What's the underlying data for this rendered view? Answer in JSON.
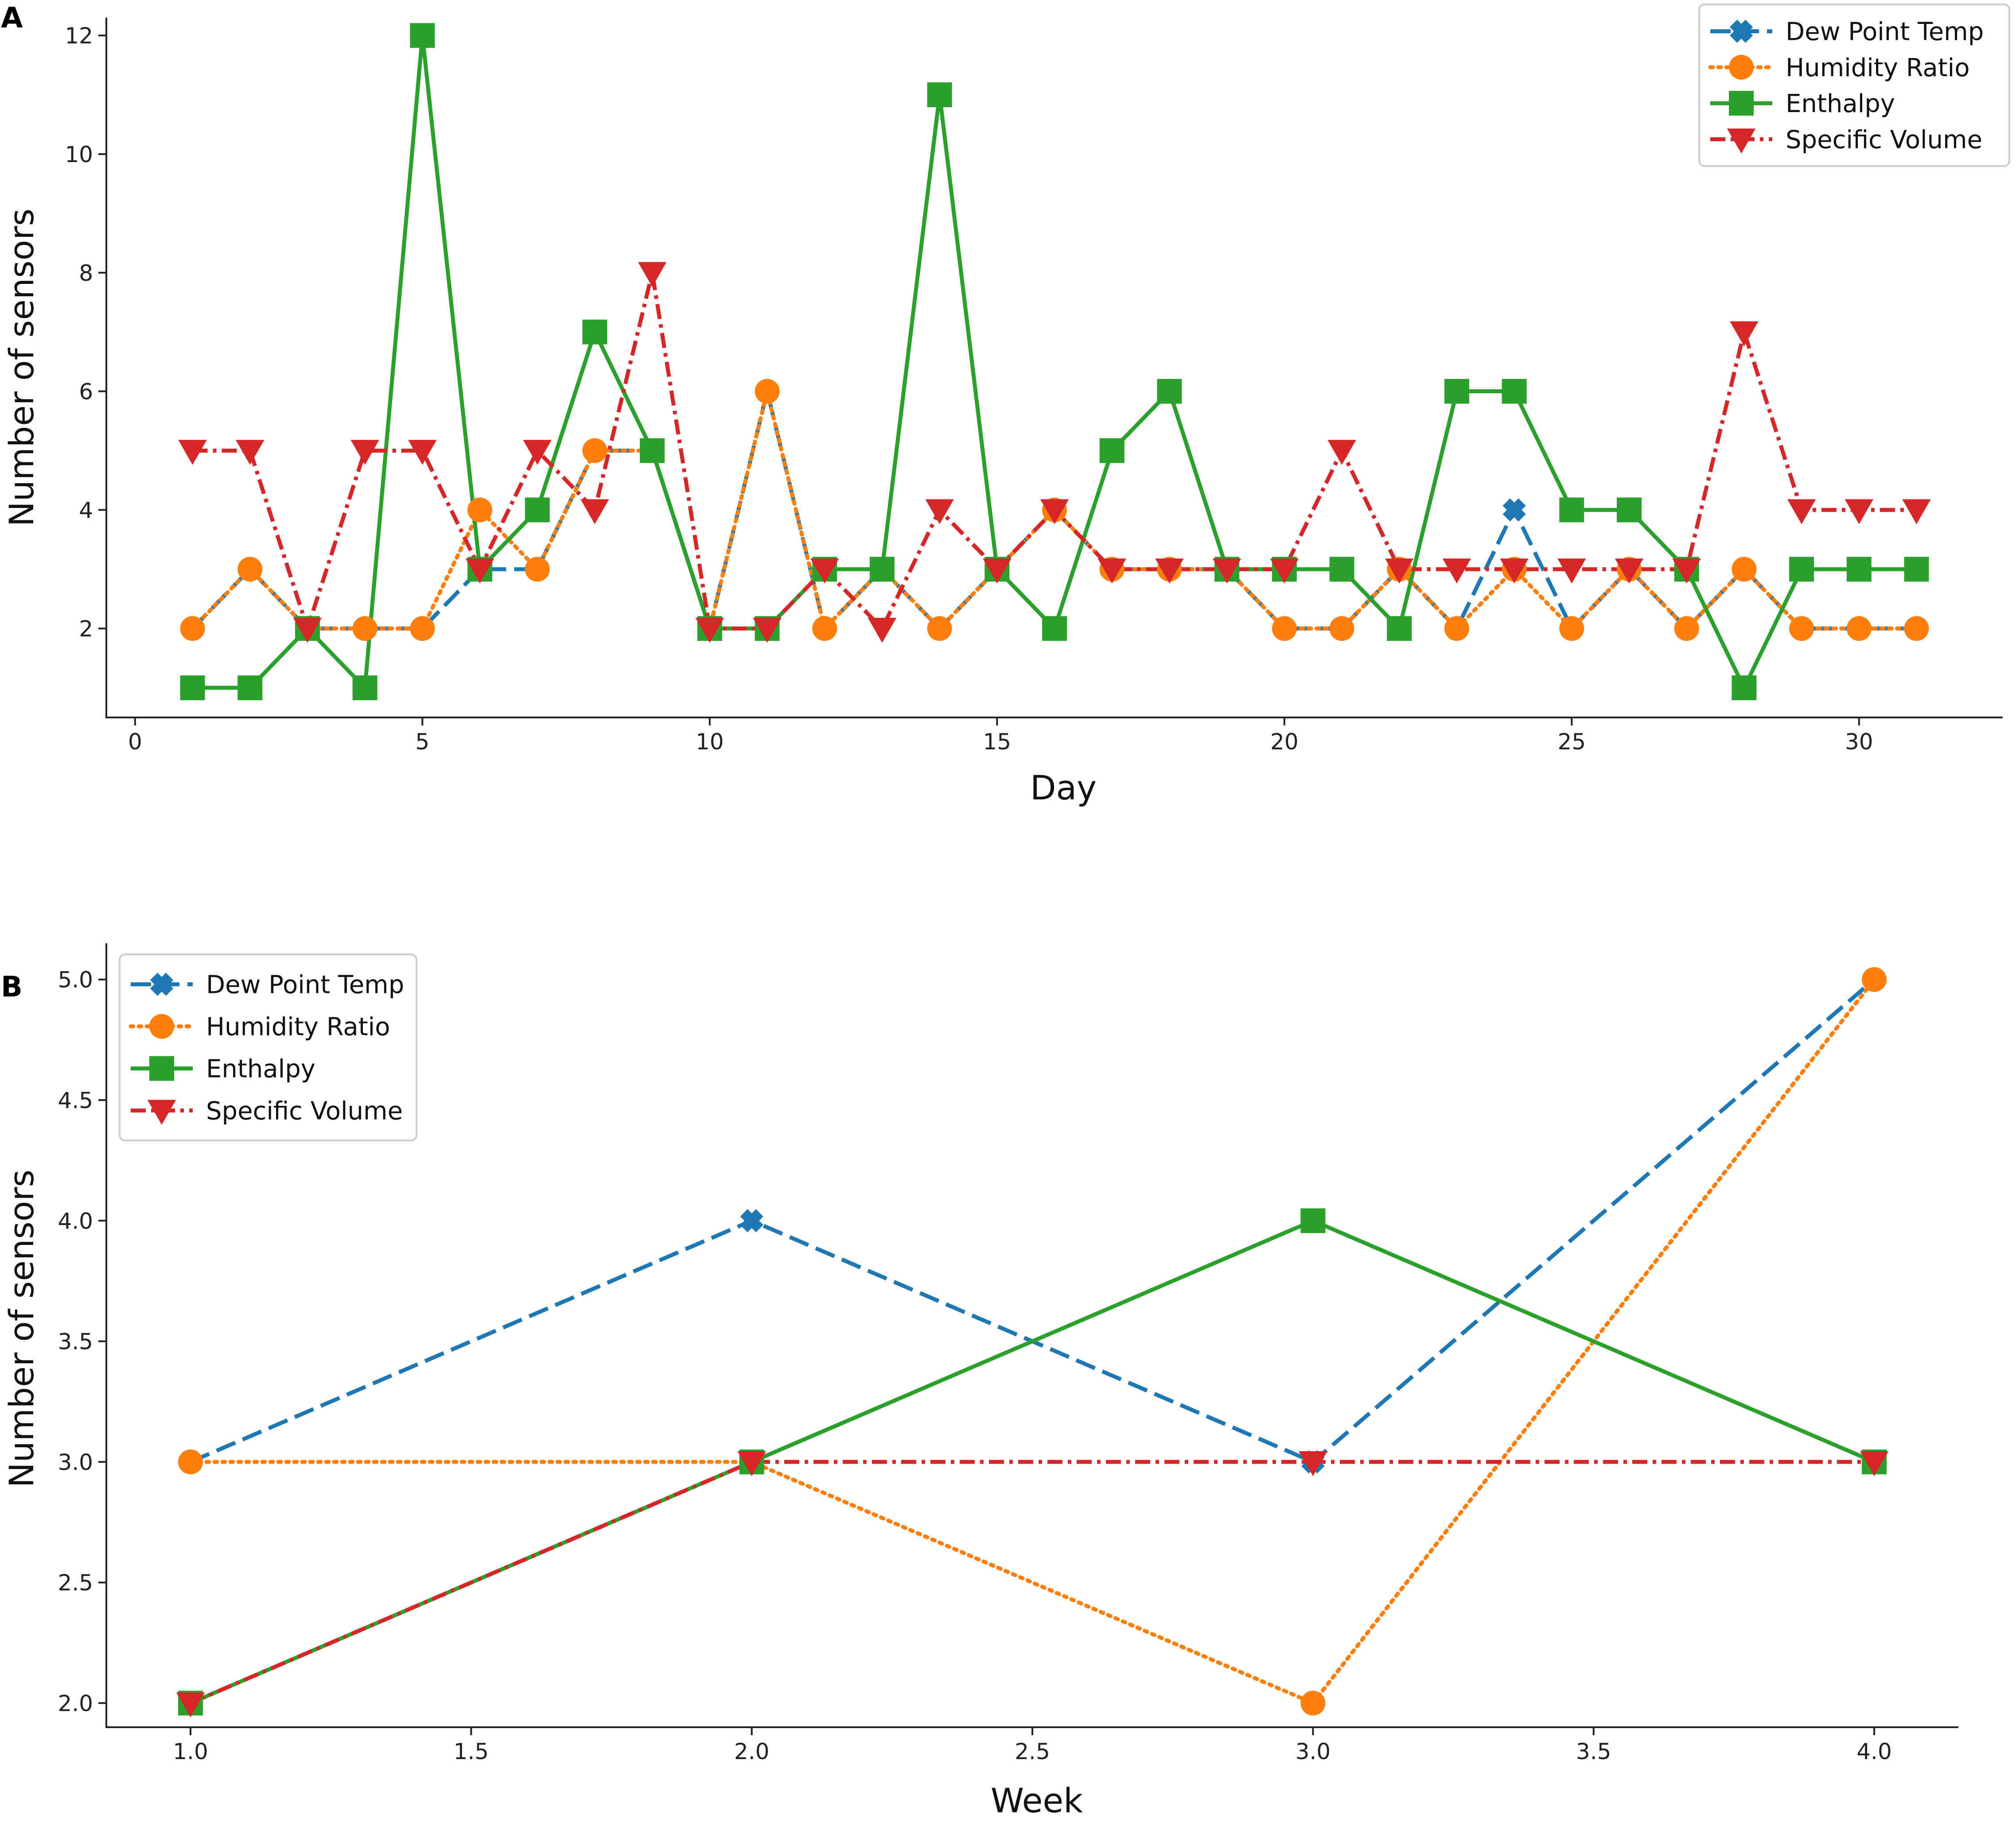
{
  "chart_data": [
    {
      "type": "line",
      "panel": "A",
      "title": "",
      "xlabel": "Day",
      "ylabel": "Number of sensors",
      "xlim": [
        -0.5,
        32.5
      ],
      "ylim": [
        0.5,
        12.3
      ],
      "xticks": [
        0,
        5,
        10,
        15,
        20,
        25,
        30
      ],
      "yticks": [
        2,
        4,
        6,
        8,
        10,
        12
      ],
      "tick_labels_x": [
        "0",
        "5",
        "10",
        "15",
        "20",
        "25",
        "30"
      ],
      "tick_labels_y": [
        "2",
        "4",
        "6",
        "8",
        "10",
        "12"
      ],
      "legend_position": "top-right",
      "grid": false,
      "x": [
        1,
        2,
        3,
        4,
        5,
        6,
        7,
        8,
        9,
        10,
        11,
        12,
        13,
        14,
        15,
        16,
        17,
        18,
        19,
        20,
        21,
        22,
        23,
        24,
        25,
        26,
        27,
        28,
        29,
        30,
        31
      ],
      "series": [
        {
          "name": "Dew Point Temp",
          "color": "#1f77b4",
          "dash": "dashed",
          "marker": "x-filled",
          "values": [
            2,
            3,
            2,
            2,
            2,
            3,
            3,
            5,
            5,
            2,
            6,
            2,
            3,
            2,
            3,
            4,
            3,
            3,
            3,
            2,
            2,
            3,
            2,
            4,
            2,
            3,
            2,
            3,
            2,
            2,
            2
          ]
        },
        {
          "name": "Humidity Ratio",
          "color": "#ff7f0e",
          "dash": "dotted",
          "marker": "circle",
          "values": [
            2,
            3,
            2,
            2,
            2,
            4,
            3,
            5,
            5,
            2,
            6,
            2,
            3,
            2,
            3,
            4,
            3,
            3,
            3,
            2,
            2,
            3,
            2,
            3,
            2,
            3,
            2,
            3,
            2,
            2,
            2
          ]
        },
        {
          "name": "Enthalpy",
          "color": "#2ca02c",
          "dash": "solid",
          "marker": "square",
          "values": [
            1,
            1,
            2,
            1,
            12,
            3,
            4,
            7,
            5,
            2,
            2,
            3,
            3,
            11,
            3,
            2,
            5,
            6,
            3,
            3,
            3,
            2,
            6,
            6,
            4,
            4,
            3,
            1,
            3,
            3,
            3
          ]
        },
        {
          "name": "Specific Volume",
          "color": "#d62728",
          "dash": "dashdot",
          "marker": "triangle-down",
          "values": [
            5,
            5,
            2,
            5,
            5,
            3,
            5,
            4,
            8,
            2,
            2,
            3,
            2,
            4,
            3,
            4,
            3,
            3,
            3,
            3,
            5,
            3,
            3,
            3,
            3,
            3,
            3,
            7,
            4,
            4,
            4
          ]
        }
      ]
    },
    {
      "type": "line",
      "panel": "B",
      "title": "",
      "xlabel": "Week",
      "ylabel": "Number of sensors",
      "xlim": [
        0.85,
        4.15
      ],
      "ylim": [
        1.9,
        5.15
      ],
      "xticks": [
        1.0,
        1.5,
        2.0,
        2.5,
        3.0,
        3.5,
        4.0
      ],
      "yticks": [
        2.0,
        2.5,
        3.0,
        3.5,
        4.0,
        4.5,
        5.0
      ],
      "tick_labels_x": [
        "1.0",
        "1.5",
        "2.0",
        "2.5",
        "3.0",
        "3.5",
        "4.0"
      ],
      "tick_labels_y": [
        "2.0",
        "2.5",
        "3.0",
        "3.5",
        "4.0",
        "4.5",
        "5.0"
      ],
      "legend_position": "top-left",
      "grid": false,
      "x": [
        1,
        2,
        3,
        4
      ],
      "series": [
        {
          "name": "Dew Point Temp",
          "color": "#1f77b4",
          "dash": "dashed",
          "marker": "x-filled",
          "values": [
            3,
            4,
            3,
            5
          ]
        },
        {
          "name": "Humidity Ratio",
          "color": "#ff7f0e",
          "dash": "dotted",
          "marker": "circle",
          "values": [
            3,
            3,
            2,
            5
          ]
        },
        {
          "name": "Enthalpy",
          "color": "#2ca02c",
          "dash": "solid",
          "marker": "square",
          "values": [
            2,
            3,
            4,
            3
          ]
        },
        {
          "name": "Specific Volume",
          "color": "#d62728",
          "dash": "dashdot",
          "marker": "triangle-down",
          "values": [
            2,
            3,
            3,
            3
          ]
        }
      ]
    }
  ]
}
